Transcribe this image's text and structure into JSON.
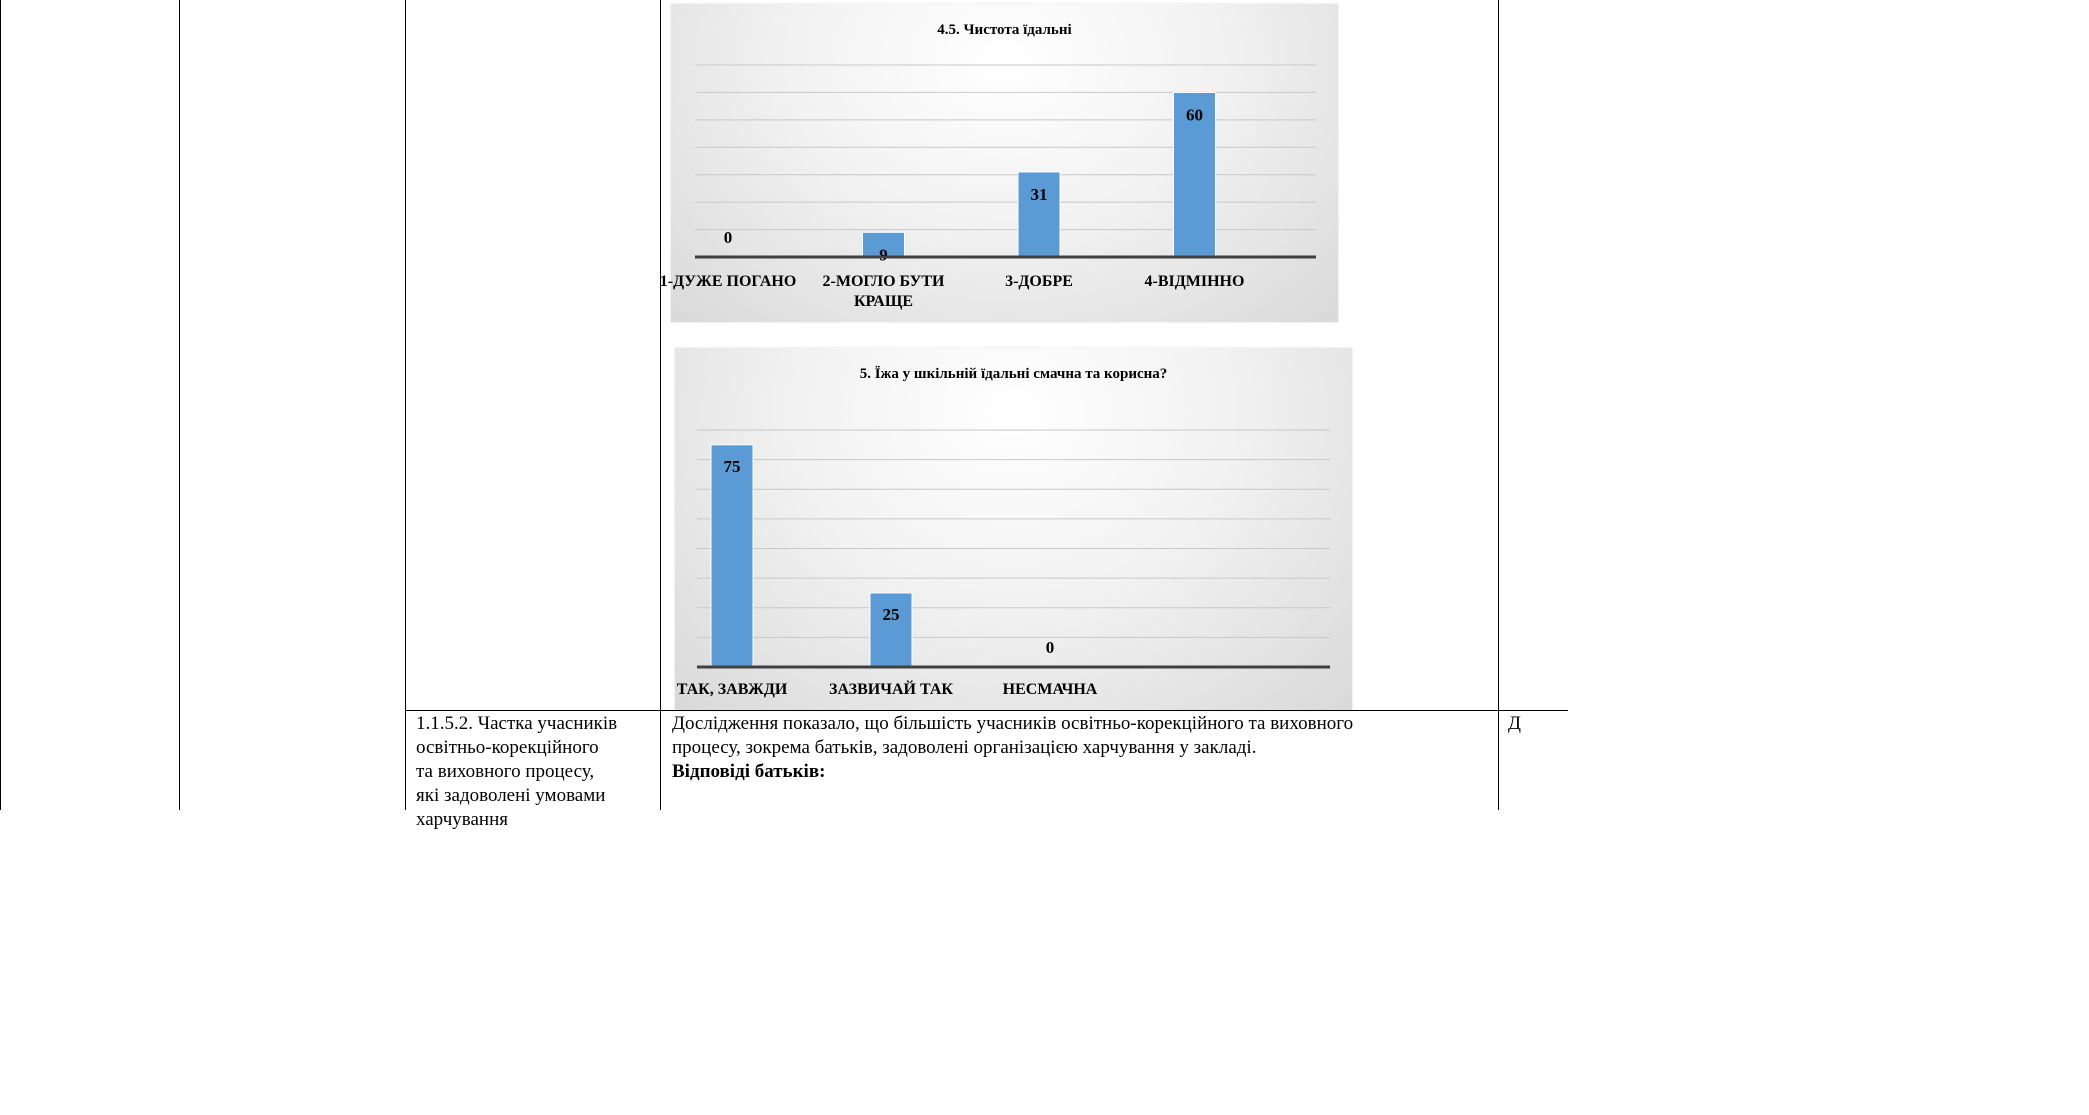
{
  "chart_data": [
    {
      "type": "bar",
      "title": "4.5. Чистота їдальні",
      "categories": [
        "1-ДУЖЕ ПОГАНО",
        "2-МОГЛО БУТИ КРАЩЕ",
        "3-ДОБРЕ",
        "4-ВІДМІННО"
      ],
      "category_lines": [
        [
          "1-ДУЖЕ ПОГАНО"
        ],
        [
          "2-МОГЛО БУТИ",
          "КРАЩЕ"
        ],
        [
          "3-ДОБРЕ"
        ],
        [
          "4-ВІДМІННО"
        ]
      ],
      "values": [
        0,
        9,
        31,
        60
      ],
      "ylim": [
        0,
        70
      ],
      "grid": true,
      "bar_color": "#5b9bd5"
    },
    {
      "type": "bar",
      "title": "5. Їжа у шкільній їдальні смачна та корисна?",
      "categories": [
        "ТАК, ЗАВЖДИ",
        "ЗАЗВИЧАЙ ТАК",
        "НЕСМАЧНА"
      ],
      "category_lines": [
        [
          "ТАК, ЗАВЖДИ"
        ],
        [
          "ЗАЗВИЧАЙ ТАК"
        ],
        [
          "НЕСМАЧНА"
        ]
      ],
      "values": [
        75,
        25,
        0
      ],
      "ylim": [
        0,
        80
      ],
      "grid": true,
      "bar_color": "#5b9bd5"
    }
  ],
  "table": {
    "indicator": "1.1.5.2. Частка учасників освітньо-корекційного та виховного процесу, які задоволені умовами харчування",
    "indicator_lines": [
      "1.1.5.2. Частка учасників",
      "освітньо-корекційного",
      "та виховного процесу,",
      "які задоволені умовами",
      "харчування"
    ],
    "description_lines": [
      "Дослідження показало, що більшість учасників освітньо-корекційного та виховного",
      "процесу, зокрема батьків, задоволені організацією  харчування у закладі."
    ],
    "description_bold": "Відповіді батьків:",
    "level": "Д"
  }
}
